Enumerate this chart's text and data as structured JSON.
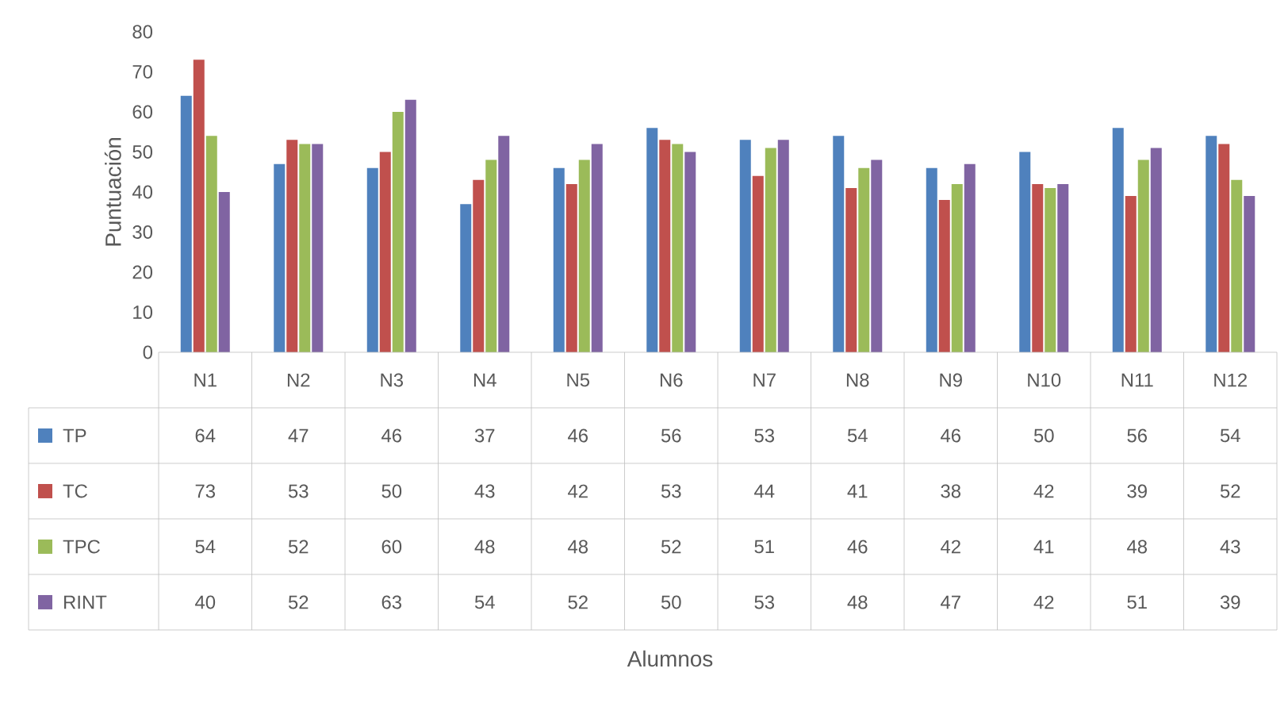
{
  "chart_data": {
    "type": "bar",
    "annotations": [
      "Alumnos"
    ],
    "ylabel": "Puntuación",
    "categories": [
      "N1",
      "N2",
      "N3",
      "N4",
      "N5",
      "N6",
      "N7",
      "N8",
      "N9",
      "N10",
      "N11",
      "N12"
    ],
    "series": [
      {
        "name": "TP",
        "color": "#4f81bd",
        "values": [
          64,
          47,
          46,
          37,
          46,
          56,
          53,
          54,
          46,
          50,
          56,
          54
        ]
      },
      {
        "name": "TC",
        "color": "#c0504d",
        "values": [
          73,
          53,
          50,
          43,
          42,
          53,
          44,
          41,
          38,
          42,
          39,
          52
        ]
      },
      {
        "name": "TPC",
        "color": "#9bbb59",
        "values": [
          54,
          52,
          60,
          48,
          48,
          52,
          51,
          46,
          42,
          41,
          48,
          43
        ]
      },
      {
        "name": "RINT",
        "color": "#8064a2",
        "values": [
          40,
          52,
          63,
          54,
          52,
          50,
          53,
          48,
          47,
          42,
          51,
          39
        ]
      }
    ],
    "ylim": [
      0,
      80
    ],
    "yticks": [
      0,
      10,
      20,
      30,
      40,
      50,
      60,
      70,
      80
    ],
    "grid": false,
    "legend": "bottom",
    "data_labels": true
  }
}
